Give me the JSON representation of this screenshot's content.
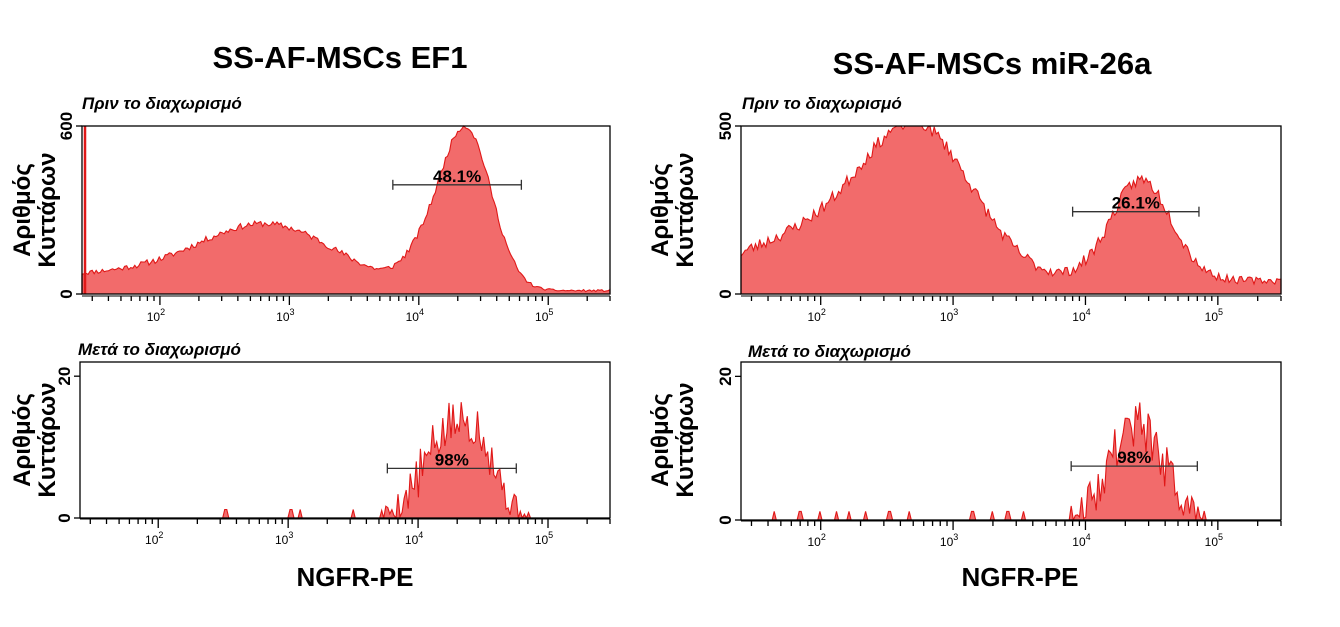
{
  "figure": {
    "x_axis_label": "NGFR-PE",
    "colors": {
      "fill": "#f26b6b",
      "stroke": "#e01818"
    }
  },
  "chart_data": [
    {
      "type": "area",
      "title": "SS-AF-MSCs EF1",
      "subtitle": "Πριν το διαχωρισμό",
      "ylabel_line1": "Αριθμός",
      "ylabel_line2": "Κυττάρων",
      "xlabel": "",
      "x_scale": "log",
      "xlim": [
        25,
        300000
      ],
      "ylim": [
        0,
        600
      ],
      "y_ticks": [
        0,
        600
      ],
      "x_ticks": [
        {
          "value": 100,
          "base": "10",
          "exp": "2"
        },
        {
          "value": 1000,
          "base": "10",
          "exp": "3"
        },
        {
          "value": 10000,
          "base": "10",
          "exp": "4"
        },
        {
          "value": 100000,
          "base": "10",
          "exp": "5"
        }
      ],
      "gate": {
        "from": 6300,
        "to": 62000,
        "y": 390,
        "label": "48.1%"
      },
      "spike_left": true,
      "components": [
        {
          "center": 2.82,
          "sigma": 0.55,
          "height": 235
        },
        {
          "center": 1.45,
          "sigma": 0.6,
          "height": 55
        },
        {
          "center": 4.36,
          "sigma": 0.2,
          "height": 580
        },
        {
          "center": 4.0,
          "sigma": 0.15,
          "height": 70
        }
      ],
      "baseline": 12,
      "noise": 22,
      "seed": 11
    },
    {
      "type": "area",
      "title": "SS-AF-MSCs miR-26a",
      "subtitle": "Πριν το διαχωρισμό",
      "ylabel_line1": "Αριθμός",
      "ylabel_line2": "Κυττάρων",
      "xlabel": "",
      "x_scale": "log",
      "xlim": [
        25,
        300000
      ],
      "ylim": [
        0,
        500
      ],
      "y_ticks": [
        0,
        500
      ],
      "x_ticks": [
        {
          "value": 100,
          "base": "10",
          "exp": "2"
        },
        {
          "value": 1000,
          "base": "10",
          "exp": "3"
        },
        {
          "value": 10000,
          "base": "10",
          "exp": "4"
        },
        {
          "value": 100000,
          "base": "10",
          "exp": "5"
        }
      ],
      "gate": {
        "from": 8000,
        "to": 72000,
        "y": 245,
        "label": "26.1%"
      },
      "spike_left": false,
      "components": [
        {
          "center": 2.73,
          "sigma": 0.42,
          "height": 445
        },
        {
          "center": 1.85,
          "sigma": 0.5,
          "height": 120
        },
        {
          "center": 4.42,
          "sigma": 0.23,
          "height": 300
        }
      ],
      "baseline": 40,
      "noise": 38,
      "seed": 23
    },
    {
      "type": "area",
      "title": "",
      "subtitle": "Μετά το διαχωρισμό",
      "ylabel_line1": "Αριθμός",
      "ylabel_line2": "Κυττάρων",
      "xlabel": "NGFR-PE",
      "x_scale": "log",
      "xlim": [
        25,
        300000
      ],
      "ylim": [
        0,
        22
      ],
      "y_ticks": [
        0,
        20
      ],
      "x_ticks": [
        {
          "value": 100,
          "base": "10",
          "exp": "2"
        },
        {
          "value": 1000,
          "base": "10",
          "exp": "3"
        },
        {
          "value": 10000,
          "base": "10",
          "exp": "4"
        },
        {
          "value": 100000,
          "base": "10",
          "exp": "5"
        }
      ],
      "gate": {
        "from": 5800,
        "to": 57000,
        "y": 7,
        "label": "98%"
      },
      "spike_left": false,
      "components": [
        {
          "center": 4.28,
          "sigma": 0.22,
          "height": 13
        },
        {
          "center": 4.5,
          "sigma": 0.1,
          "height": 4
        }
      ],
      "baseline": 0,
      "noise": 7,
      "seed": 5,
      "sparse_bins": [
        330,
        1050,
        1250,
        3200
      ]
    },
    {
      "type": "area",
      "title": "",
      "subtitle": "Μετά το διαχωρισμό",
      "ylabel_line1": "Αριθμός",
      "ylabel_line2": "Κυττάρων",
      "xlabel": "NGFR-PE",
      "x_scale": "log",
      "xlim": [
        25,
        300000
      ],
      "ylim": [
        0,
        22
      ],
      "y_ticks": [
        0,
        20
      ],
      "x_ticks": [
        {
          "value": 100,
          "base": "10",
          "exp": "2"
        },
        {
          "value": 1000,
          "base": "10",
          "exp": "3"
        },
        {
          "value": 10000,
          "base": "10",
          "exp": "4"
        },
        {
          "value": 100000,
          "base": "10",
          "exp": "5"
        }
      ],
      "gate": {
        "from": 7800,
        "to": 70000,
        "y": 7.5,
        "label": "98%"
      },
      "spike_left": false,
      "components": [
        {
          "center": 4.38,
          "sigma": 0.2,
          "height": 13.5
        }
      ],
      "baseline": 0,
      "noise": 7,
      "seed": 9,
      "sparse_bins": [
        45,
        70,
        100,
        130,
        165,
        220,
        330,
        470,
        1400,
        2000,
        2600,
        3400
      ]
    }
  ]
}
